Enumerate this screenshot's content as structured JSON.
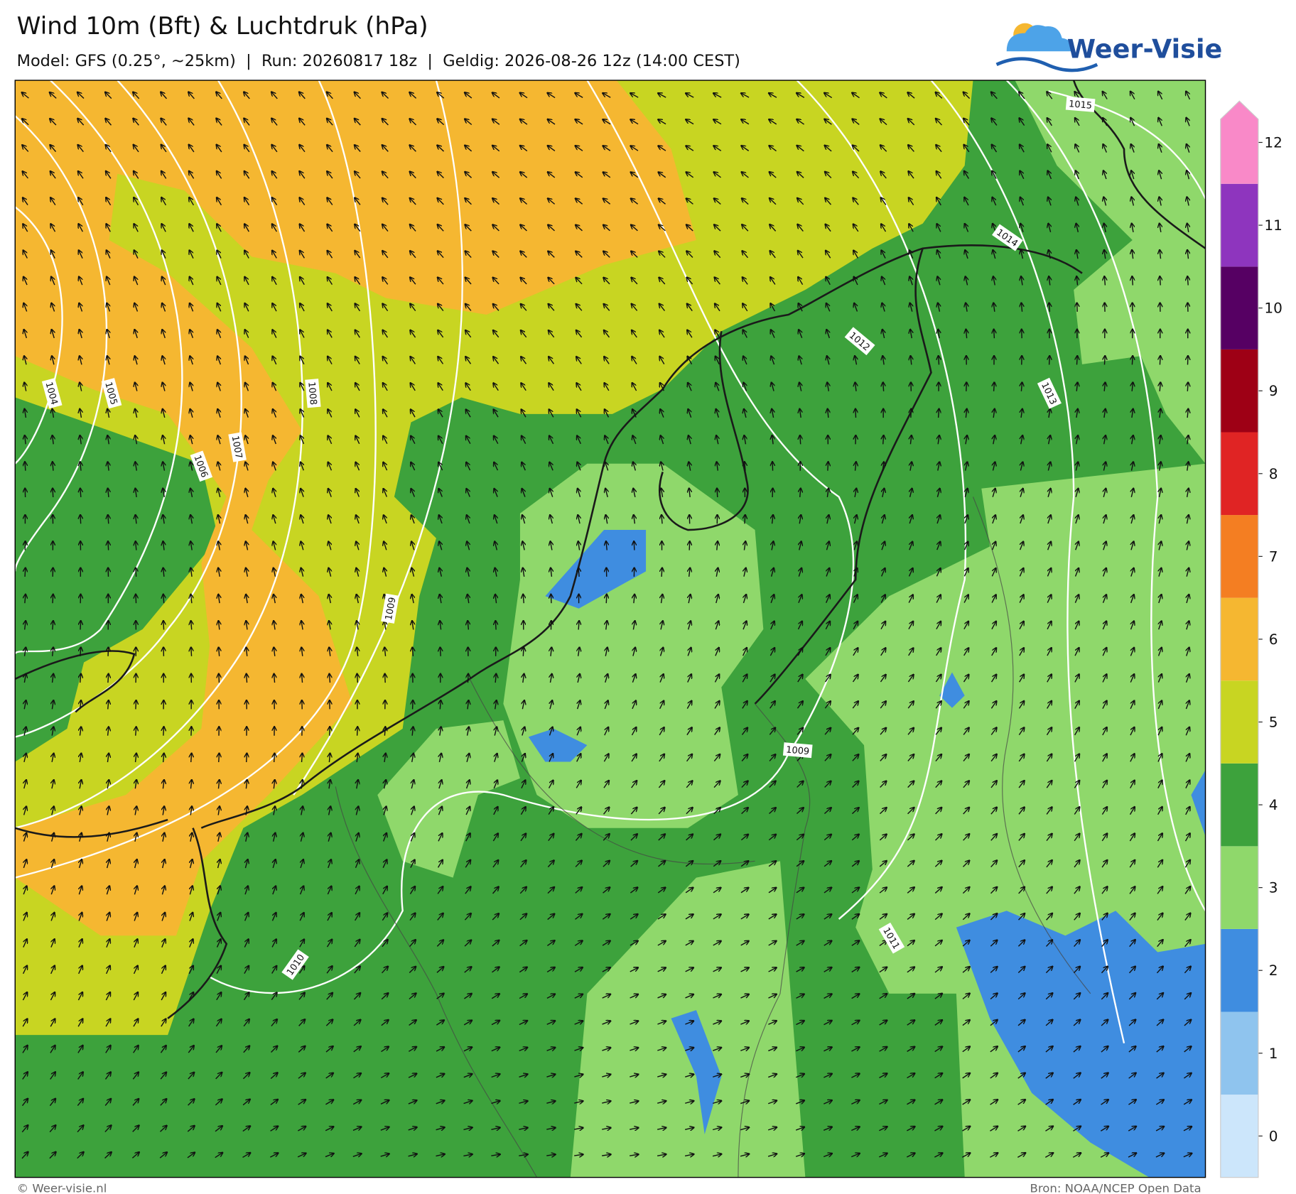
{
  "header": {
    "title": "Wind 10m (Bft) & Luchtdruk (hPa)",
    "subtitle": "Model: GFS (0.25°, ~25km)  |  Run: 20260817 18z  |  Geldig: 2026-08-26 12z (14:00 CEST)"
  },
  "logo": {
    "text": "Weer-Visie"
  },
  "map": {
    "isobar_labels": [
      "1004",
      "1005",
      "1006",
      "1007",
      "1008",
      "1009",
      "1010",
      "1011",
      "1012",
      "1013",
      "1014",
      "1015",
      "1009"
    ]
  },
  "colorbar": {
    "ticks": [
      0,
      1,
      2,
      3,
      4,
      5,
      6,
      7,
      8,
      9,
      10,
      11,
      12
    ],
    "colors": [
      "#cce6fb",
      "#8fc4ee",
      "#3f8de0",
      "#8fd86b",
      "#3da23c",
      "#c8d522",
      "#f5b731",
      "#f47e22",
      "#e02424",
      "#9e0015",
      "#560063",
      "#8e35be",
      "#f989c8"
    ]
  },
  "footer": {
    "left": "© Weer-visie.nl",
    "right": "Bron: NOAA/NCEP Open Data"
  }
}
